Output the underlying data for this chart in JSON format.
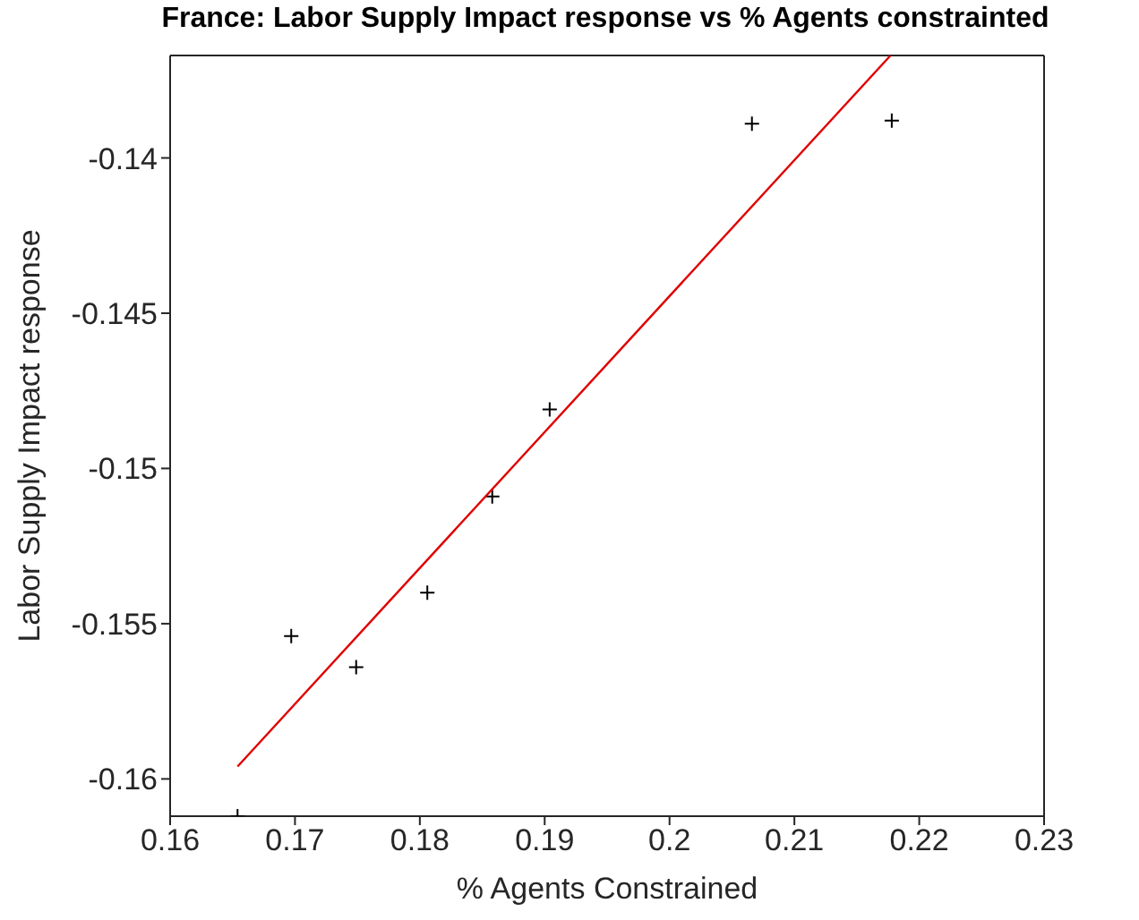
{
  "chart_data": {
    "type": "scatter",
    "title": "France: Labor Supply Impact response vs % Agents constrainted",
    "xlabel": "% Agents Constrained",
    "ylabel": "Labor Supply Impact response",
    "xlim": [
      0.16,
      0.23
    ],
    "xticks": [
      0.16,
      0.17,
      0.18,
      0.19,
      0.2,
      0.21,
      0.22,
      0.23
    ],
    "ylim": [
      -0.1612,
      -0.1367
    ],
    "yticks": [
      -0.16,
      -0.155,
      -0.15,
      -0.145,
      -0.14
    ],
    "series": [
      {
        "marker": "cross",
        "color": "#000000",
        "x": [
          0.1654,
          0.1697,
          0.1749,
          0.1806,
          0.1858,
          0.1904,
          0.2066,
          0.2178
        ],
        "values": [
          -0.1612,
          -0.1554,
          -0.1564,
          -0.154,
          -0.1509,
          -0.1481,
          -0.1389,
          -0.1388
        ]
      },
      {
        "type": "line",
        "marker": "none",
        "color": "#e00000",
        "x": [
          0.1654,
          0.2177
        ],
        "values": [
          -0.1596,
          -0.1367
        ]
      }
    ]
  }
}
